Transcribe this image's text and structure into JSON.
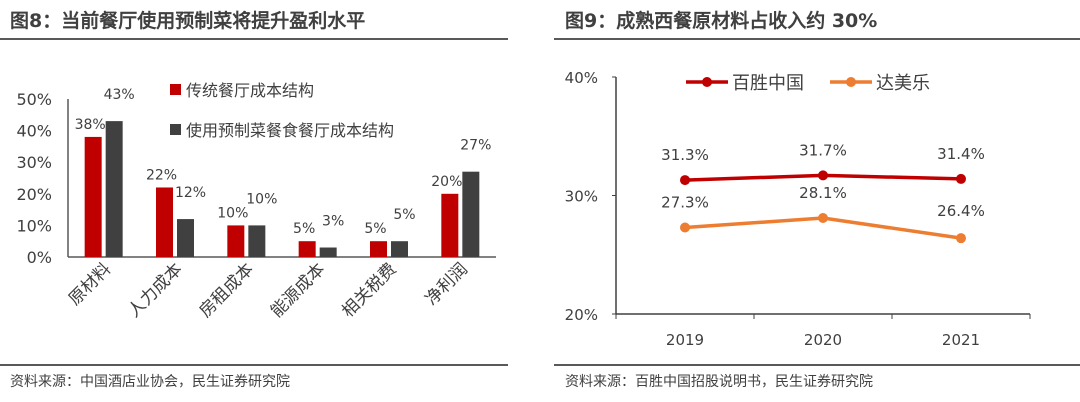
{
  "colors": {
    "red": "#c00000",
    "gray": "#404040",
    "orange": "#ed7d31"
  },
  "chart_data": [
    {
      "type": "bar",
      "title": "图8：当前餐厅使用预制菜将提升盈利水平",
      "source": "资料来源：中国酒店业协会，民生证券研究院",
      "categories": [
        "原材料",
        "人力成本",
        "房租成本",
        "能源成本",
        "相关税费",
        "净利润"
      ],
      "series": [
        {
          "name": "传统餐厅成本结构",
          "values": [
            38,
            22,
            10,
            5,
            5,
            20
          ],
          "labels": [
            "38%",
            "22%",
            "10%",
            "5%",
            "5%",
            "20%"
          ]
        },
        {
          "name": "使用预制菜餐食餐厅成本结构",
          "values": [
            43,
            12,
            10,
            3,
            5,
            27
          ],
          "labels": [
            "43%",
            "12%",
            "10%",
            "3%",
            "5%",
            "27%"
          ]
        }
      ],
      "yticks": [
        "0%",
        "10%",
        "20%",
        "30%",
        "40%",
        "50%"
      ],
      "ylim": [
        0,
        50
      ],
      "ylabel": "",
      "xlabel": "",
      "legend": "top-right"
    },
    {
      "type": "line",
      "title": "图9：成熟西餐原材料占收入约 30%",
      "source": "资料来源：百胜中国招股说明书，民生证券研究院",
      "categories": [
        "2019",
        "2020",
        "2021"
      ],
      "series": [
        {
          "name": "百胜中国",
          "values": [
            31.3,
            31.7,
            31.4
          ],
          "labels": [
            "31.3%",
            "31.7%",
            "31.4%"
          ]
        },
        {
          "name": "达美乐",
          "values": [
            27.3,
            28.1,
            26.4
          ],
          "labels": [
            "27.3%",
            "28.1%",
            "26.4%"
          ]
        }
      ],
      "yticks": [
        "20%",
        "30%",
        "40%"
      ],
      "ylim": [
        20,
        40
      ],
      "ylabel": "",
      "xlabel": "",
      "legend": "top"
    }
  ]
}
